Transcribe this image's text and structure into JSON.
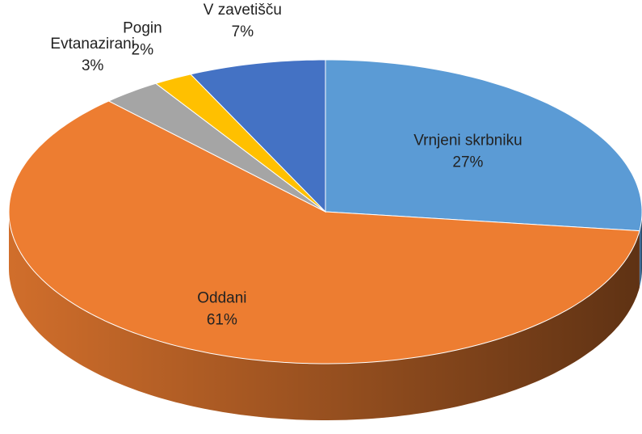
{
  "chart_data": {
    "type": "pie",
    "categories": [
      "Vrnjeni skrbniku",
      "Oddani",
      "Evtanazirani",
      "Pogin",
      "V zavetišču"
    ],
    "values": [
      27,
      61,
      3,
      2,
      7
    ],
    "value_labels": [
      "27%",
      "61%",
      "3%",
      "2%",
      "7%"
    ],
    "colors": [
      "#5b9bd5",
      "#ed7d31",
      "#a5a5a5",
      "#ffc000",
      "#4472c4"
    ]
  }
}
